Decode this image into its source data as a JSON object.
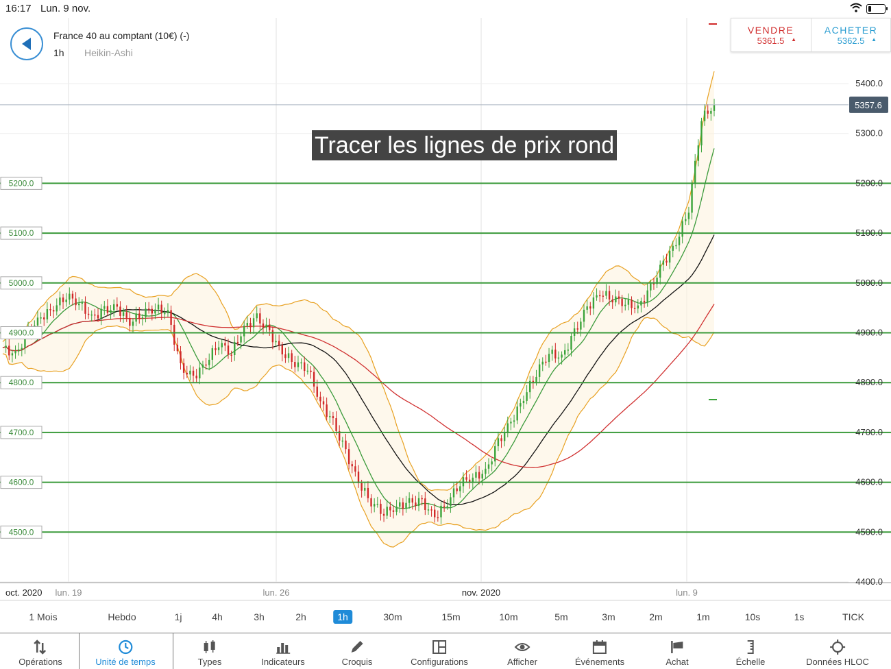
{
  "status_bar": {
    "time": "16:17",
    "date": "Lun. 9 nov."
  },
  "header": {
    "instrument": "France 40 au comptant (10€) (-)",
    "timeframe": "1h",
    "chart_type": "Heikin-Ashi"
  },
  "trade": {
    "sell_label": "VENDRE",
    "sell_price": "5361.5",
    "buy_label": "ACHETER",
    "buy_price": "5362.5"
  },
  "overlay_text": "Tracer les lignes de prix rond",
  "chart_data": {
    "type": "candlestick",
    "current_price": "5357.6",
    "y_axis_ticks": [
      "5400.0",
      "5300.0",
      "5200.0",
      "5100.0",
      "5000.0",
      "4900.0",
      "4800.0",
      "4700.0",
      "4600.0",
      "4500.0",
      "4400.0"
    ],
    "y_tick_values": [
      5400,
      5300,
      5200,
      5100,
      5000,
      4900,
      4800,
      4700,
      4600,
      4500,
      4400
    ],
    "round_price_lines": [
      "5200.0",
      "5100.0",
      "5000.0",
      "4900.0",
      "4800.0",
      "4700.0",
      "4600.0",
      "4500.0"
    ],
    "round_price_values": [
      5200,
      5100,
      5000,
      4900,
      4800,
      4700,
      4600,
      4500
    ],
    "x_axis_labels": [
      "oct. 2020",
      "lun. 19",
      "lun. 26",
      "nov. 2020",
      "lun. 9"
    ],
    "close_series": [
      4870,
      4855,
      4900,
      4930,
      4950,
      4975,
      4960,
      4930,
      4945,
      4950,
      4920,
      4940,
      4950,
      4940,
      4830,
      4810,
      4840,
      4880,
      4860,
      4910,
      4930,
      4900,
      4860,
      4840,
      4830,
      4760,
      4720,
      4660,
      4600,
      4560,
      4540,
      4550,
      4560,
      4560,
      4530,
      4560,
      4600,
      4610,
      4620,
      4680,
      4720,
      4770,
      4820,
      4860,
      4850,
      4900,
      4950,
      4980,
      4970,
      4960,
      4950,
      4990,
      5040,
      5080,
      5150,
      5330,
      5357
    ],
    "colors": {
      "grid_line": "#3a9a3a",
      "bollinger": "#e8a020",
      "ma_fast": "#3a9a3a",
      "ma_mid": "#111111",
      "ma_slow": "#d03030",
      "up": "#3aa33a",
      "down": "#d02828"
    }
  },
  "timeframes": [
    "1 Mois",
    "Hebdo",
    "1j",
    "4h",
    "3h",
    "2h",
    "1h",
    "30m",
    "15m",
    "10m",
    "5m",
    "3m",
    "2m",
    "1m",
    "10s",
    "1s",
    "TICK"
  ],
  "active_timeframe": "1h",
  "toolbar": [
    {
      "label": "Opérations",
      "icon": "operations-icon"
    },
    {
      "label": "Unité de temps",
      "icon": "clock-icon"
    },
    {
      "label": "Types",
      "icon": "candles-icon"
    },
    {
      "label": "Indicateurs",
      "icon": "bars-icon"
    },
    {
      "label": "Croquis",
      "icon": "pencil-icon"
    },
    {
      "label": "Configurations",
      "icon": "layout-icon"
    },
    {
      "label": "Afficher",
      "icon": "eye-icon"
    },
    {
      "label": "Événements",
      "icon": "calendar-icon"
    },
    {
      "label": "Achat",
      "icon": "flag-icon"
    },
    {
      "label": "Échelle",
      "icon": "scale-icon"
    },
    {
      "label": "Données HLOC",
      "icon": "crosshair-icon"
    }
  ]
}
